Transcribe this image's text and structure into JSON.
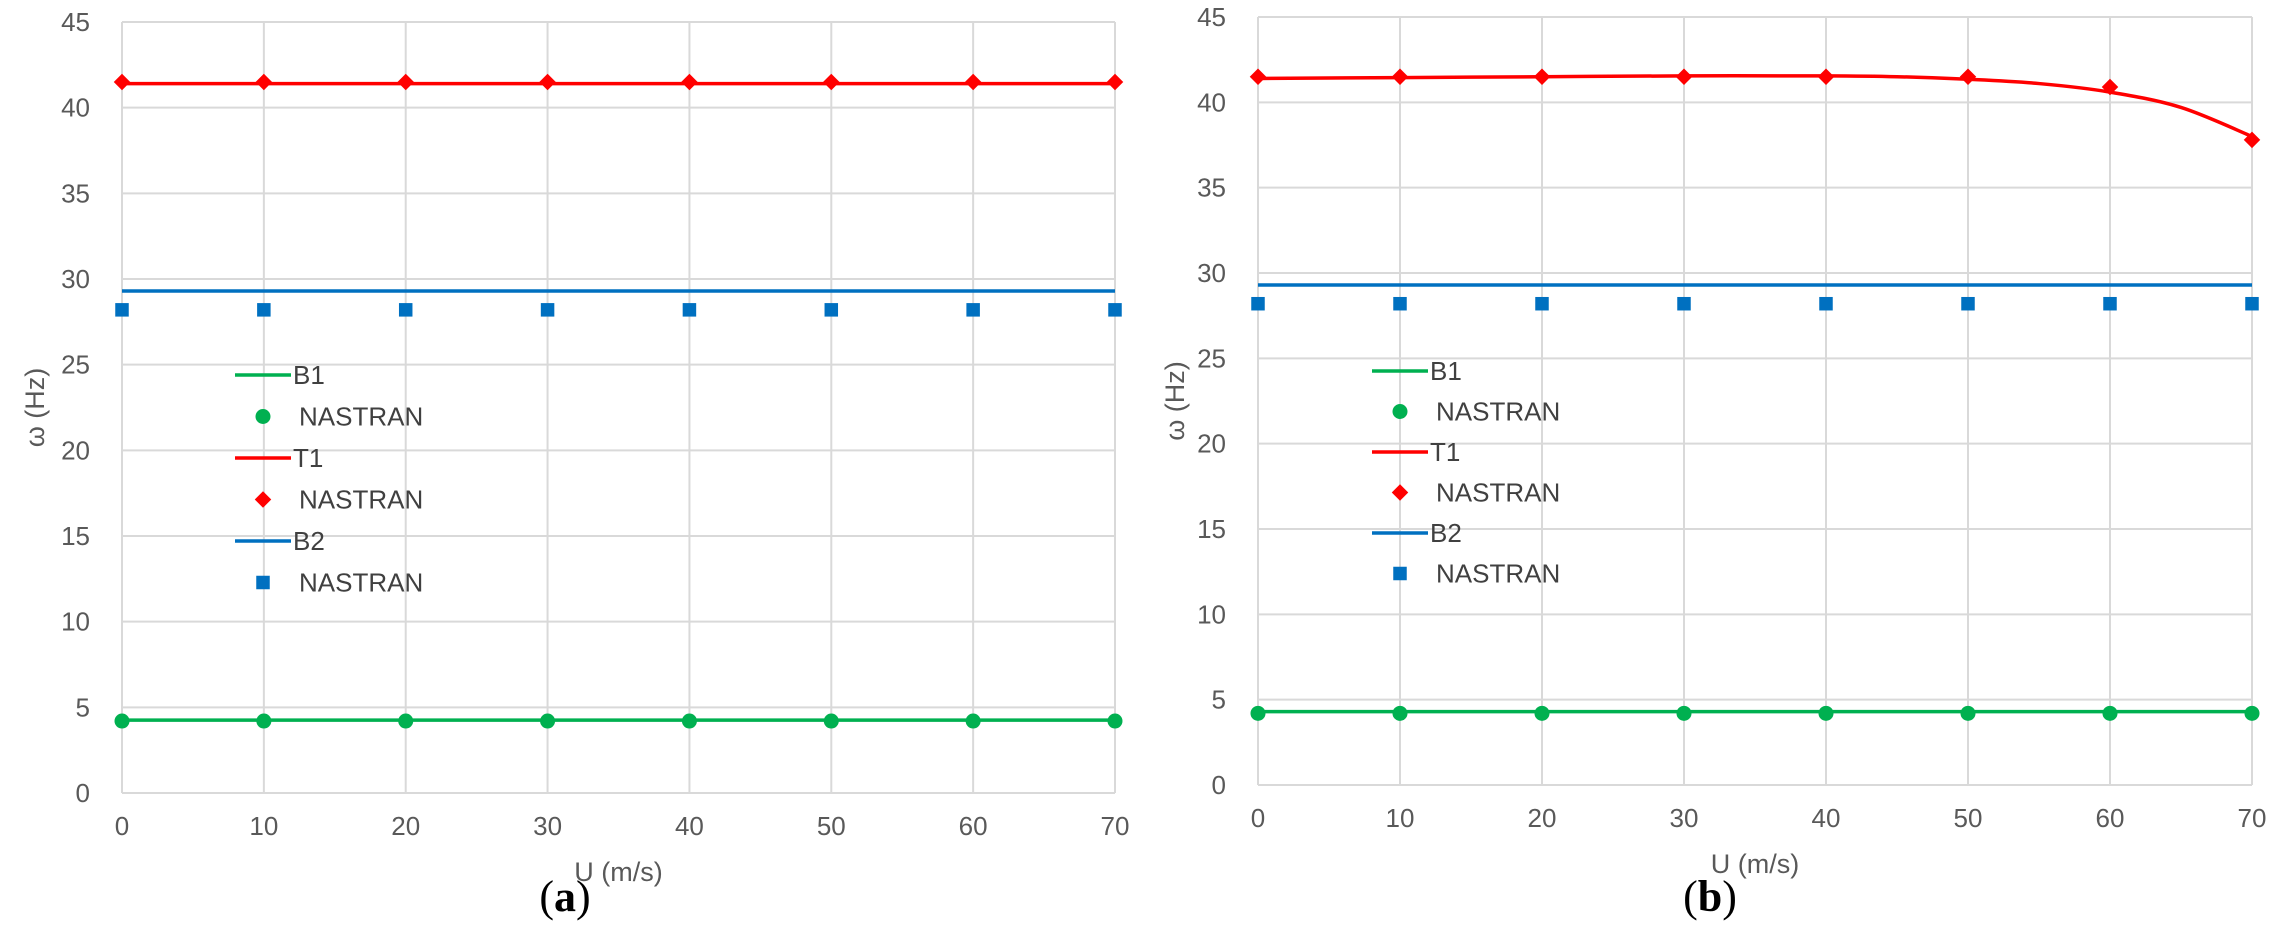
{
  "chart_data": [
    {
      "type": "line",
      "caption_open": "(",
      "caption_letter": "a",
      "caption_close": ")",
      "xlabel": "U (m/s)",
      "ylabel": "ω (Hz)",
      "xlim": [
        0,
        70
      ],
      "ylim": [
        0,
        45
      ],
      "xticks": [
        0,
        10,
        20,
        30,
        40,
        50,
        60,
        70
      ],
      "yticks": [
        0,
        5,
        10,
        15,
        20,
        25,
        30,
        35,
        40,
        45
      ],
      "grid": true,
      "legend_position": "center-left",
      "x": [
        0,
        10,
        20,
        30,
        40,
        50,
        60,
        70
      ],
      "series": [
        {
          "name": "B1",
          "kind": "line",
          "color": "#00b050",
          "x": [
            0,
            70
          ],
          "values": [
            4.25,
            4.25
          ]
        },
        {
          "name": "NASTRAN",
          "kind": "marker",
          "marker": "circle",
          "color": "#00b050",
          "values": [
            4.2,
            4.2,
            4.2,
            4.2,
            4.2,
            4.2,
            4.2,
            4.2
          ]
        },
        {
          "name": "T1",
          "kind": "line",
          "color": "#ff0000",
          "x": [
            0,
            70
          ],
          "values": [
            41.4,
            41.4
          ]
        },
        {
          "name": "NASTRAN",
          "kind": "marker",
          "marker": "diamond",
          "color": "#ff0000",
          "values": [
            41.5,
            41.5,
            41.5,
            41.5,
            41.5,
            41.5,
            41.5,
            41.5
          ]
        },
        {
          "name": "B2",
          "kind": "line",
          "color": "#0070c0",
          "x": [
            0,
            70
          ],
          "values": [
            29.3,
            29.3
          ]
        },
        {
          "name": "NASTRAN",
          "kind": "marker",
          "marker": "square",
          "color": "#0070c0",
          "values": [
            28.2,
            28.2,
            28.2,
            28.2,
            28.2,
            28.2,
            28.2,
            28.2
          ]
        }
      ]
    },
    {
      "type": "line",
      "caption_open": "(",
      "caption_letter": "b",
      "caption_close": ")",
      "xlabel": "U (m/s)",
      "ylabel": "ω (Hz)",
      "xlim": [
        0,
        70
      ],
      "ylim": [
        0,
        45
      ],
      "xticks": [
        0,
        10,
        20,
        30,
        40,
        50,
        60,
        70
      ],
      "yticks": [
        0,
        5,
        10,
        15,
        20,
        25,
        30,
        35,
        40,
        45
      ],
      "grid": true,
      "legend_position": "center-left",
      "x": [
        0,
        10,
        20,
        30,
        40,
        50,
        60,
        70
      ],
      "series": [
        {
          "name": "B1",
          "kind": "line",
          "color": "#00b050",
          "x": [
            0,
            70
          ],
          "values": [
            4.3,
            4.3
          ]
        },
        {
          "name": "NASTRAN",
          "kind": "marker",
          "marker": "circle",
          "color": "#00b050",
          "values": [
            4.2,
            4.2,
            4.2,
            4.2,
            4.2,
            4.2,
            4.2,
            4.2
          ]
        },
        {
          "name": "T1",
          "kind": "line",
          "color": "#ff0000",
          "x": [
            0,
            10,
            20,
            30,
            40,
            45,
            50,
            55,
            60,
            65,
            70
          ],
          "values": [
            41.4,
            41.45,
            41.5,
            41.55,
            41.55,
            41.5,
            41.35,
            41.1,
            40.6,
            39.7,
            38.0
          ]
        },
        {
          "name": "NASTRAN",
          "kind": "marker",
          "marker": "diamond",
          "color": "#ff0000",
          "values": [
            41.5,
            41.5,
            41.5,
            41.5,
            41.5,
            41.5,
            40.9,
            37.8
          ]
        },
        {
          "name": "B2",
          "kind": "line",
          "color": "#0070c0",
          "x": [
            0,
            70
          ],
          "values": [
            29.3,
            29.3
          ]
        },
        {
          "name": "NASTRAN",
          "kind": "marker",
          "marker": "square",
          "color": "#0070c0",
          "values": [
            28.2,
            28.2,
            28.2,
            28.2,
            28.2,
            28.2,
            28.2,
            28.2
          ]
        }
      ]
    }
  ]
}
